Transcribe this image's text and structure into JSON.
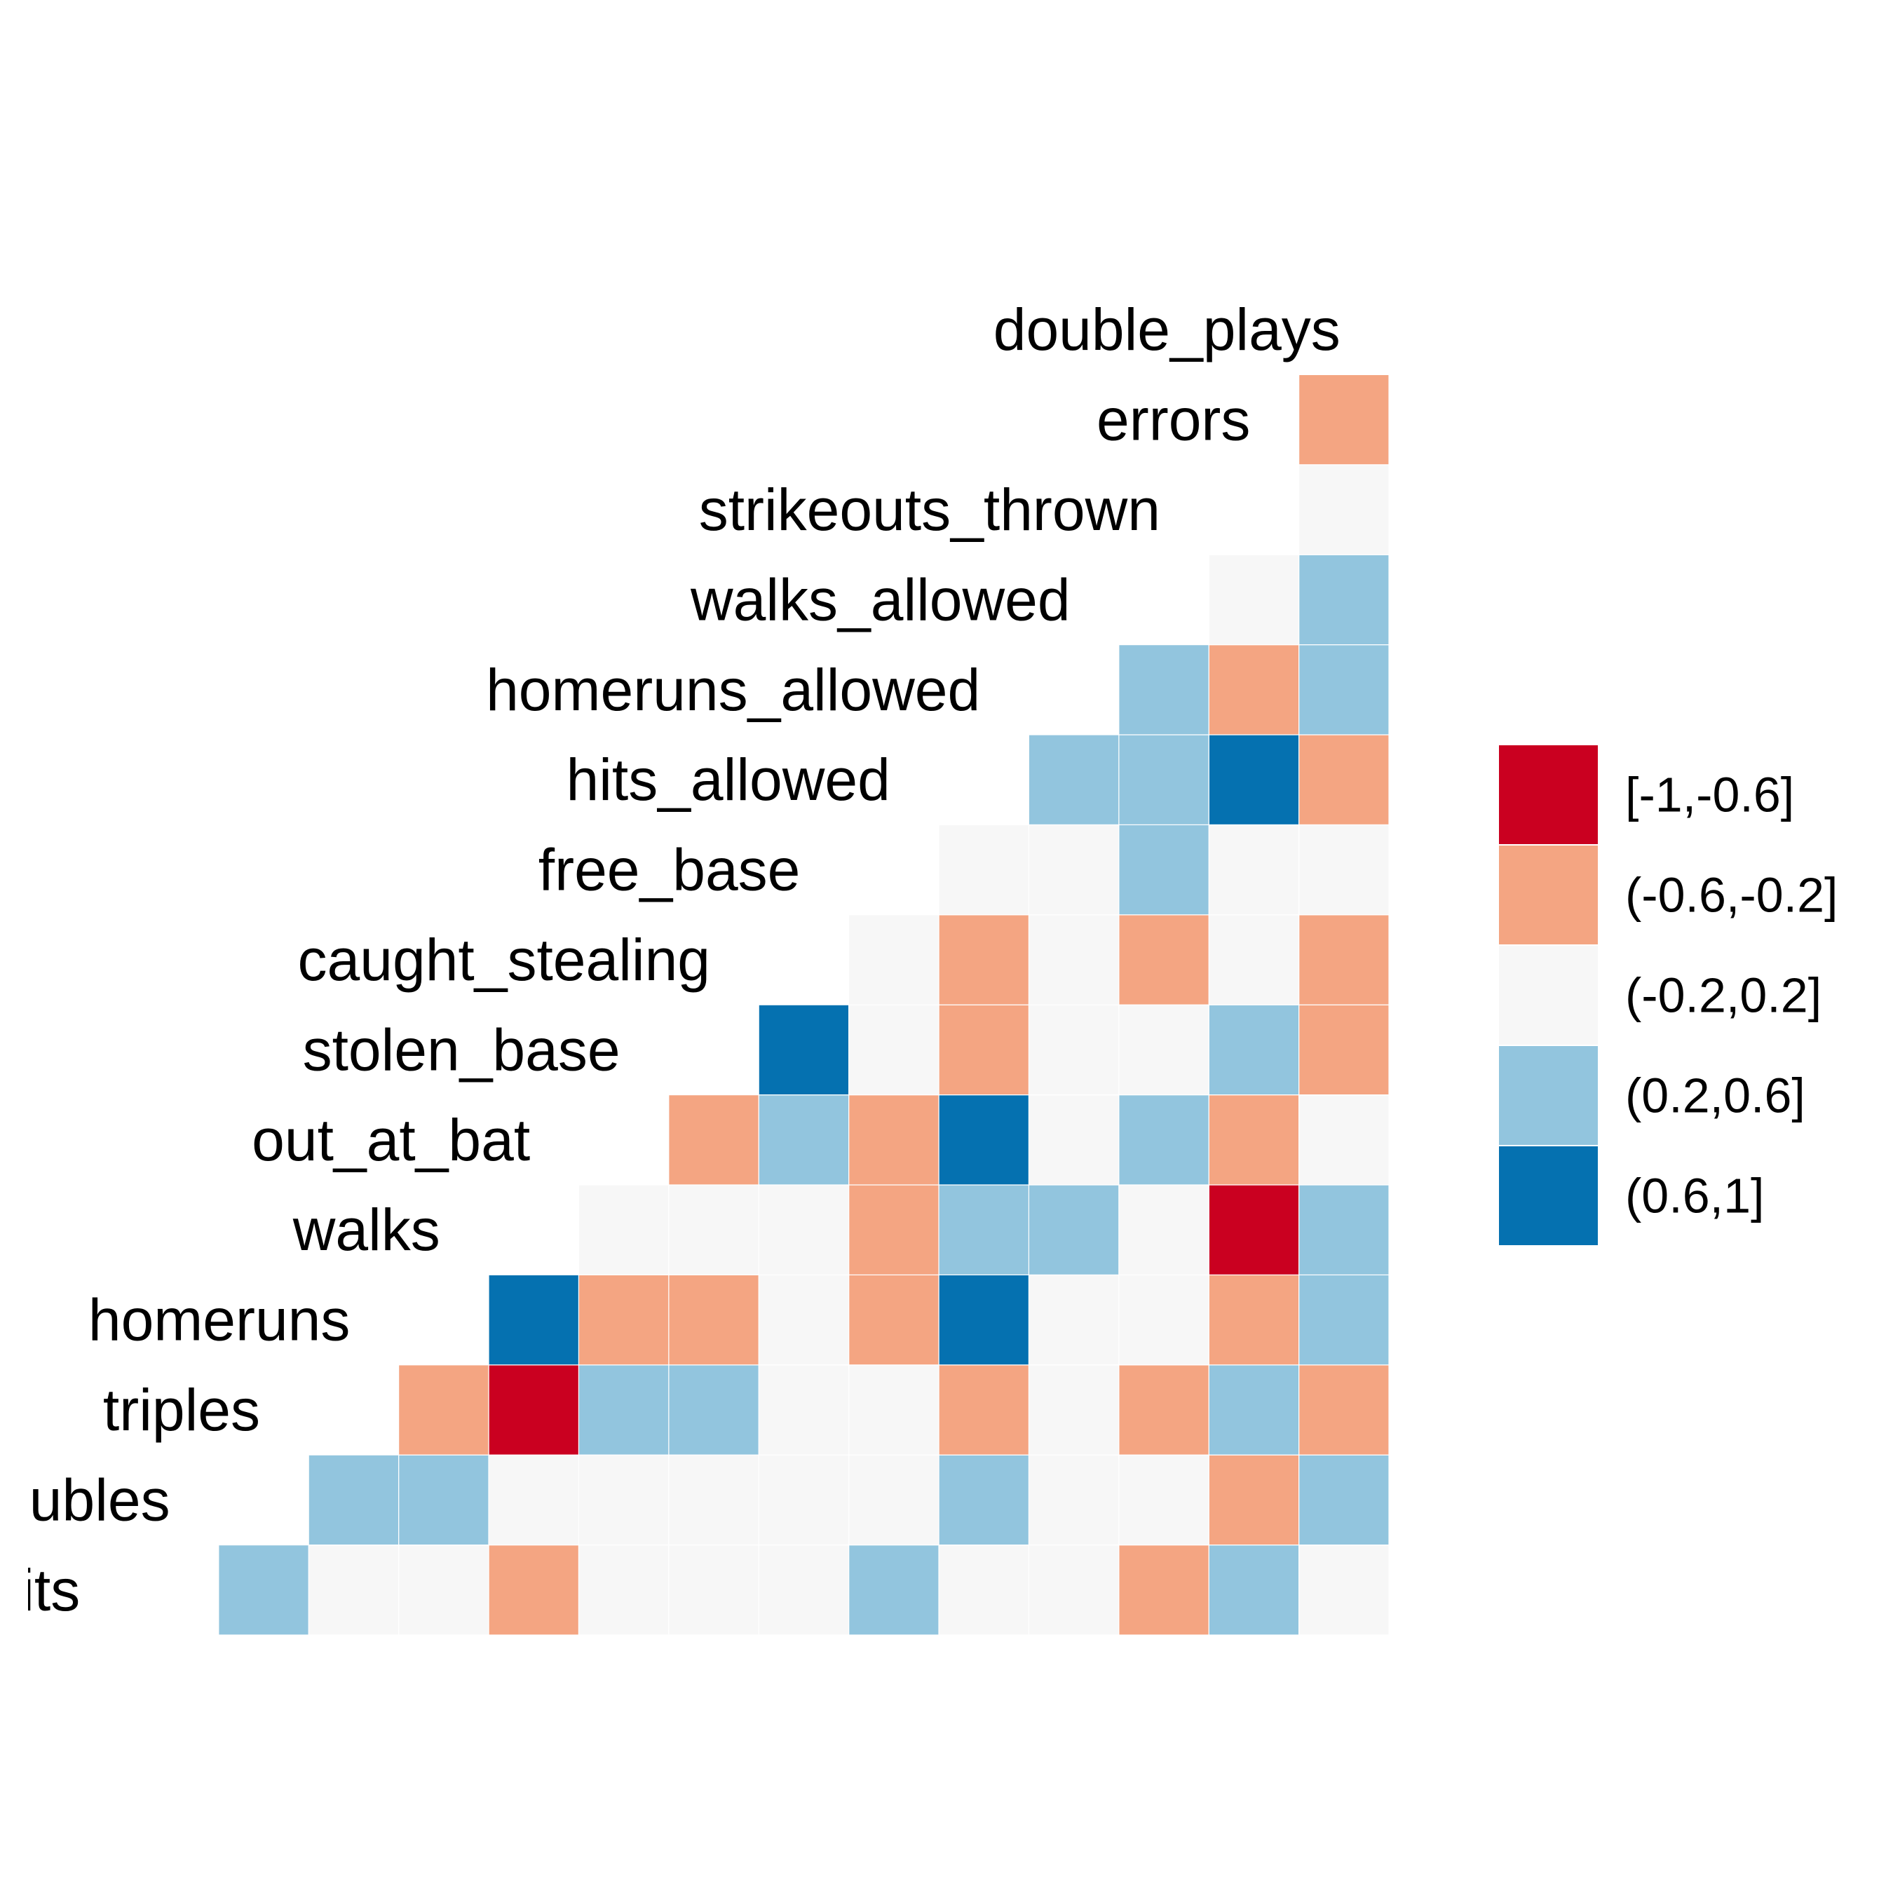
{
  "chart_data": {
    "type": "heatmap",
    "variables": [
      "base_hits",
      "doubles",
      "triples",
      "homeruns",
      "walks",
      "out_at_bat",
      "stolen_base",
      "caught_stealing",
      "free_base",
      "hits_allowed",
      "homeruns_allowed",
      "walks_allowed",
      "strikeouts_thrown",
      "errors",
      "double_plays"
    ],
    "legend": {
      "labels": [
        "[-1,-0.6]",
        "(-0.6,-0.2]",
        "(-0.2,0.2]",
        "(0.2,0.6]",
        "(0.6,1]"
      ],
      "colors": [
        "#ca0020",
        "#f4a582",
        "#f7f7f7",
        "#92c5de",
        "#0571b0"
      ],
      "placement": "right"
    },
    "grid": false,
    "cells": [
      {
        "row": 0,
        "col": 14,
        "bin": 2
      },
      {
        "row": 0,
        "col": 13,
        "bin": 3
      },
      {
        "row": 0,
        "col": 12,
        "bin": 1
      },
      {
        "row": 0,
        "col": 11,
        "bin": 2
      },
      {
        "row": 0,
        "col": 10,
        "bin": 2
      },
      {
        "row": 0,
        "col": 9,
        "bin": 3
      },
      {
        "row": 0,
        "col": 8,
        "bin": 2
      },
      {
        "row": 0,
        "col": 7,
        "bin": 2
      },
      {
        "row": 0,
        "col": 6,
        "bin": 2
      },
      {
        "row": 0,
        "col": 5,
        "bin": 1
      },
      {
        "row": 0,
        "col": 4,
        "bin": 2
      },
      {
        "row": 0,
        "col": 3,
        "bin": 2
      },
      {
        "row": 0,
        "col": 2,
        "bin": 3
      },
      {
        "row": 1,
        "col": 14,
        "bin": 3
      },
      {
        "row": 1,
        "col": 13,
        "bin": 1
      },
      {
        "row": 1,
        "col": 12,
        "bin": 2
      },
      {
        "row": 1,
        "col": 11,
        "bin": 2
      },
      {
        "row": 1,
        "col": 10,
        "bin": 3
      },
      {
        "row": 1,
        "col": 9,
        "bin": 2
      },
      {
        "row": 1,
        "col": 8,
        "bin": 2
      },
      {
        "row": 1,
        "col": 7,
        "bin": 2
      },
      {
        "row": 1,
        "col": 6,
        "bin": 2
      },
      {
        "row": 1,
        "col": 5,
        "bin": 2
      },
      {
        "row": 1,
        "col": 4,
        "bin": 3
      },
      {
        "row": 1,
        "col": 3,
        "bin": 3
      },
      {
        "row": 2,
        "col": 14,
        "bin": 1
      },
      {
        "row": 2,
        "col": 13,
        "bin": 3
      },
      {
        "row": 2,
        "col": 12,
        "bin": 1
      },
      {
        "row": 2,
        "col": 11,
        "bin": 2
      },
      {
        "row": 2,
        "col": 10,
        "bin": 1
      },
      {
        "row": 2,
        "col": 9,
        "bin": 2
      },
      {
        "row": 2,
        "col": 8,
        "bin": 2
      },
      {
        "row": 2,
        "col": 7,
        "bin": 3
      },
      {
        "row": 2,
        "col": 6,
        "bin": 3
      },
      {
        "row": 2,
        "col": 5,
        "bin": 0
      },
      {
        "row": 2,
        "col": 4,
        "bin": 1
      },
      {
        "row": 3,
        "col": 14,
        "bin": 3
      },
      {
        "row": 3,
        "col": 13,
        "bin": 1
      },
      {
        "row": 3,
        "col": 12,
        "bin": 2
      },
      {
        "row": 3,
        "col": 11,
        "bin": 2
      },
      {
        "row": 3,
        "col": 10,
        "bin": 4
      },
      {
        "row": 3,
        "col": 9,
        "bin": 1
      },
      {
        "row": 3,
        "col": 8,
        "bin": 2
      },
      {
        "row": 3,
        "col": 7,
        "bin": 1
      },
      {
        "row": 3,
        "col": 6,
        "bin": 1
      },
      {
        "row": 3,
        "col": 5,
        "bin": 4
      },
      {
        "row": 4,
        "col": 14,
        "bin": 3
      },
      {
        "row": 4,
        "col": 13,
        "bin": 0
      },
      {
        "row": 4,
        "col": 12,
        "bin": 2
      },
      {
        "row": 4,
        "col": 11,
        "bin": 3
      },
      {
        "row": 4,
        "col": 10,
        "bin": 3
      },
      {
        "row": 4,
        "col": 9,
        "bin": 1
      },
      {
        "row": 4,
        "col": 8,
        "bin": 2
      },
      {
        "row": 4,
        "col": 7,
        "bin": 2
      },
      {
        "row": 4,
        "col": 6,
        "bin": 2
      },
      {
        "row": 5,
        "col": 14,
        "bin": 2
      },
      {
        "row": 5,
        "col": 13,
        "bin": 1
      },
      {
        "row": 5,
        "col": 12,
        "bin": 3
      },
      {
        "row": 5,
        "col": 11,
        "bin": 2
      },
      {
        "row": 5,
        "col": 10,
        "bin": 4
      },
      {
        "row": 5,
        "col": 9,
        "bin": 1
      },
      {
        "row": 5,
        "col": 8,
        "bin": 3
      },
      {
        "row": 5,
        "col": 7,
        "bin": 1
      },
      {
        "row": 6,
        "col": 14,
        "bin": 1
      },
      {
        "row": 6,
        "col": 13,
        "bin": 3
      },
      {
        "row": 6,
        "col": 12,
        "bin": 2
      },
      {
        "row": 6,
        "col": 11,
        "bin": 2
      },
      {
        "row": 6,
        "col": 10,
        "bin": 1
      },
      {
        "row": 6,
        "col": 9,
        "bin": 2
      },
      {
        "row": 6,
        "col": 8,
        "bin": 4
      },
      {
        "row": 7,
        "col": 14,
        "bin": 1
      },
      {
        "row": 7,
        "col": 13,
        "bin": 2
      },
      {
        "row": 7,
        "col": 12,
        "bin": 1
      },
      {
        "row": 7,
        "col": 11,
        "bin": 2
      },
      {
        "row": 7,
        "col": 10,
        "bin": 1
      },
      {
        "row": 7,
        "col": 9,
        "bin": 2
      },
      {
        "row": 8,
        "col": 14,
        "bin": 2
      },
      {
        "row": 8,
        "col": 13,
        "bin": 2
      },
      {
        "row": 8,
        "col": 12,
        "bin": 3
      },
      {
        "row": 8,
        "col": 11,
        "bin": 2
      },
      {
        "row": 8,
        "col": 10,
        "bin": 2
      },
      {
        "row": 9,
        "col": 14,
        "bin": 1
      },
      {
        "row": 9,
        "col": 13,
        "bin": 4
      },
      {
        "row": 9,
        "col": 12,
        "bin": 3
      },
      {
        "row": 9,
        "col": 11,
        "bin": 3
      },
      {
        "row": 10,
        "col": 14,
        "bin": 3
      },
      {
        "row": 10,
        "col": 13,
        "bin": 1
      },
      {
        "row": 10,
        "col": 12,
        "bin": 3
      },
      {
        "row": 11,
        "col": 14,
        "bin": 3
      },
      {
        "row": 11,
        "col": 13,
        "bin": 2
      },
      {
        "row": 12,
        "col": 14,
        "bin": 2
      },
      {
        "row": 13,
        "col": 14,
        "bin": 1
      }
    ]
  }
}
